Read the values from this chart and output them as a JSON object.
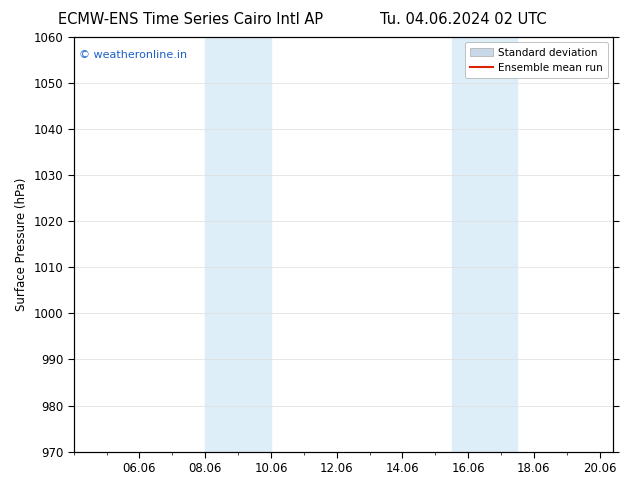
{
  "title_left": "ECMW-ENS Time Series Cairo Intl AP",
  "title_right": "Tu. 04.06.2024 02 UTC",
  "ylabel": "Surface Pressure (hPa)",
  "ylim": [
    970,
    1060
  ],
  "yticks": [
    970,
    980,
    990,
    1000,
    1010,
    1020,
    1030,
    1040,
    1050,
    1060
  ],
  "xtick_labels": [
    "06.06",
    "08.06",
    "10.06",
    "12.06",
    "14.06",
    "16.06",
    "18.06",
    "20.06"
  ],
  "xtick_positions_days": [
    2,
    4,
    6,
    8,
    10,
    12,
    14,
    16
  ],
  "xlim": [
    0,
    16.42
  ],
  "shade_bands": [
    {
      "x_start_day": 4,
      "x_end_day": 6
    },
    {
      "x_start_day": 11.5,
      "x_end_day": 13.5
    }
  ],
  "shade_color": "#ddeef8",
  "watermark_text": "© weatheronline.in",
  "watermark_color": "#1a5fcc",
  "legend_std_dev_color": "#c8d8e8",
  "legend_mean_color": "#dd2200",
  "bg_color": "#ffffff",
  "plot_bg_color": "#ffffff",
  "tick_label_fontsize": 8.5,
  "title_fontsize": 10.5,
  "ylabel_fontsize": 8.5
}
